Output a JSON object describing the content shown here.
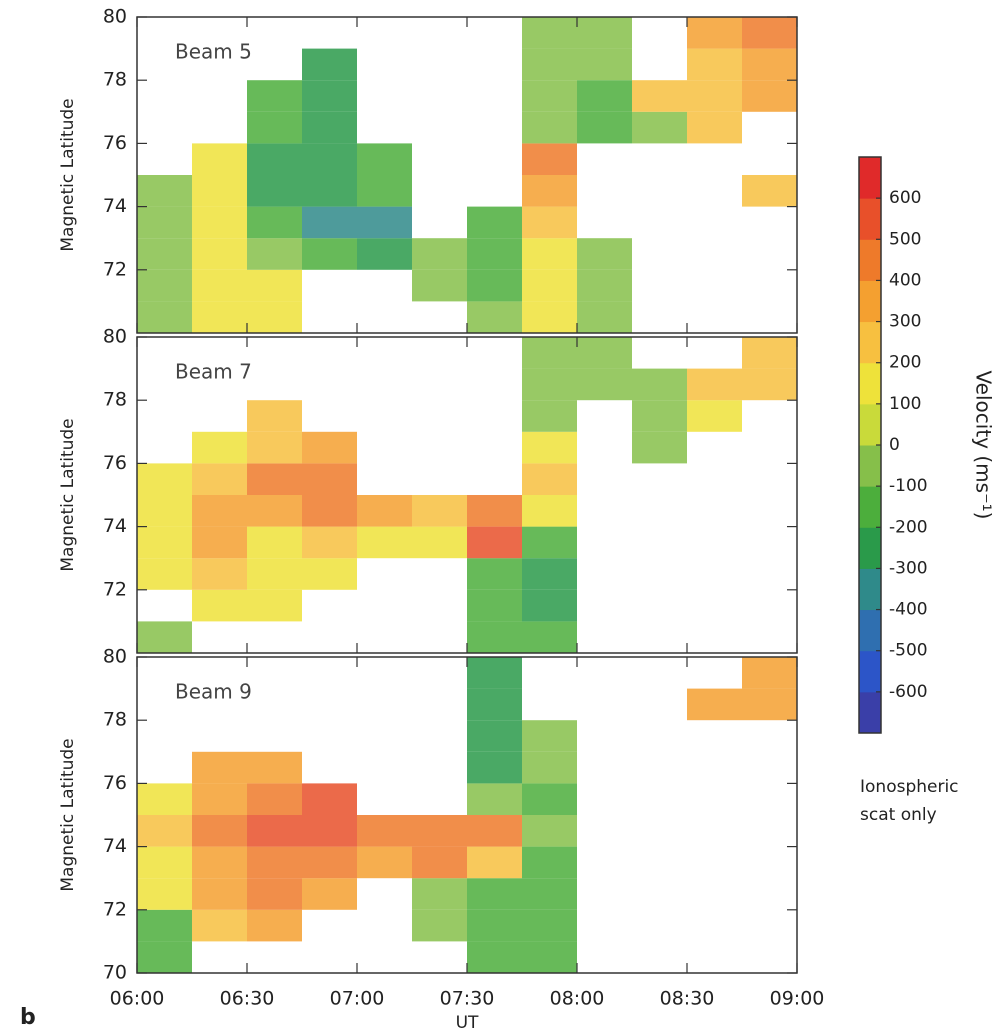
{
  "panel_label": "b",
  "note": [
    "Ionospheric",
    "scat only"
  ],
  "colorbar": {
    "label": "Velocity (ms⁻¹)",
    "ylim": [
      -700,
      700
    ],
    "yticks": [
      -600,
      -500,
      -400,
      -300,
      -200,
      -100,
      0,
      100,
      200,
      300,
      400,
      500,
      600
    ],
    "colors": [
      "#3a3fa8",
      "#2c55c8",
      "#2f6fb0",
      "#2f8a8a",
      "#2a9a4a",
      "#4cae3c",
      "#86bf4a",
      "#c9da3a",
      "#eee23a",
      "#f7c040",
      "#f4a030",
      "#ee7a2a",
      "#e8502a",
      "#e02a2a"
    ]
  },
  "chart_data": [
    {
      "type": "heatmap",
      "title": "Beam 5",
      "ylabel": "Magnetic Latitude",
      "xlim": [
        360,
        540
      ],
      "ylim": [
        70,
        80
      ],
      "yticks": [
        72,
        74,
        76,
        78,
        80
      ],
      "x": [
        367.5,
        382.5,
        397.5,
        412.5,
        427.5,
        442.5,
        457.5,
        472.5,
        487.5,
        502.5,
        517.5,
        532.5
      ],
      "y": [
        70.5,
        71.5,
        72.5,
        73.5,
        74.5,
        75.5,
        76.5,
        77.5,
        78.5,
        79.5
      ],
      "values": [
        [
          -100,
          100,
          100,
          null,
          null,
          null,
          -100,
          100,
          -100,
          null,
          null,
          null
        ],
        [
          -100,
          100,
          100,
          null,
          null,
          -50,
          -200,
          100,
          -100,
          null,
          null,
          null
        ],
        [
          -100,
          100,
          -100,
          -200,
          -300,
          -100,
          -150,
          100,
          -100,
          null,
          null,
          null
        ],
        [
          -50,
          100,
          -200,
          -350,
          -350,
          null,
          -150,
          200,
          null,
          null,
          null,
          null
        ],
        [
          -50,
          150,
          -250,
          -300,
          -200,
          null,
          null,
          350,
          null,
          null,
          null,
          200
        ],
        [
          null,
          150,
          -250,
          -250,
          -200,
          null,
          null,
          400,
          null,
          null,
          null,
          null
        ],
        [
          null,
          null,
          -200,
          -250,
          null,
          null,
          null,
          -100,
          -150,
          -100,
          200,
          null
        ],
        [
          null,
          null,
          -200,
          -250,
          null,
          null,
          null,
          -100,
          -150,
          200,
          250,
          300
        ],
        [
          null,
          null,
          null,
          -300,
          null,
          null,
          null,
          -100,
          -100,
          null,
          250,
          350
        ],
        [
          null,
          null,
          null,
          null,
          null,
          null,
          null,
          -100,
          -50,
          null,
          300,
          450
        ]
      ]
    },
    {
      "type": "heatmap",
      "title": "Beam 7",
      "ylabel": "Magnetic Latitude",
      "xlim": [
        360,
        540
      ],
      "ylim": [
        70,
        80
      ],
      "yticks": [
        72,
        74,
        76,
        78,
        80
      ],
      "x": [
        367.5,
        382.5,
        397.5,
        412.5,
        427.5,
        442.5,
        457.5,
        472.5,
        487.5,
        502.5,
        517.5,
        532.5
      ],
      "y": [
        70.5,
        71.5,
        72.5,
        73.5,
        74.5,
        75.5,
        76.5,
        77.5,
        78.5,
        79.5
      ],
      "values": [
        [
          -50,
          null,
          null,
          null,
          null,
          null,
          -200,
          -200,
          null,
          null,
          null,
          null
        ],
        [
          null,
          150,
          100,
          null,
          null,
          null,
          -200,
          -250,
          null,
          null,
          null,
          null
        ],
        [
          150,
          250,
          150,
          100,
          null,
          null,
          -200,
          -250,
          null,
          null,
          null,
          null
        ],
        [
          150,
          350,
          150,
          200,
          100,
          100,
          500,
          -200,
          null,
          null,
          null,
          null
        ],
        [
          100,
          300,
          350,
          400,
          300,
          200,
          450,
          100,
          null,
          null,
          null,
          null
        ],
        [
          100,
          250,
          400,
          450,
          null,
          null,
          null,
          200,
          null,
          null,
          null,
          null
        ],
        [
          null,
          150,
          250,
          300,
          null,
          null,
          null,
          100,
          null,
          -50,
          null,
          null
        ],
        [
          null,
          null,
          200,
          null,
          null,
          null,
          null,
          -100,
          null,
          -100,
          100,
          null
        ],
        [
          null,
          null,
          null,
          null,
          null,
          null,
          null,
          -100,
          -100,
          -100,
          200,
          250
        ],
        [
          null,
          null,
          null,
          null,
          null,
          null,
          null,
          -100,
          -100,
          null,
          null,
          250
        ]
      ]
    },
    {
      "type": "heatmap",
      "title": "Beam 9",
      "ylabel": "Magnetic Latitude",
      "xlabel": "UT",
      "xlim": [
        360,
        540
      ],
      "ylim": [
        70,
        80
      ],
      "yticks": [
        70,
        72,
        74,
        76,
        78,
        80
      ],
      "xticks": [
        {
          "value": 360,
          "label": "06:00"
        },
        {
          "value": 390,
          "label": "06:30"
        },
        {
          "value": 420,
          "label": "07:00"
        },
        {
          "value": 450,
          "label": "07:30"
        },
        {
          "value": 480,
          "label": "08:00"
        },
        {
          "value": 510,
          "label": "08:30"
        },
        {
          "value": 540,
          "label": "09:00"
        }
      ],
      "x": [
        367.5,
        382.5,
        397.5,
        412.5,
        427.5,
        442.5,
        457.5,
        472.5,
        487.5,
        502.5,
        517.5,
        532.5
      ],
      "y": [
        70.5,
        71.5,
        72.5,
        73.5,
        74.5,
        75.5,
        76.5,
        77.5,
        78.5,
        79.5
      ],
      "values": [
        [
          -150,
          null,
          null,
          null,
          null,
          null,
          -200,
          -150,
          null,
          null,
          null,
          null
        ],
        [
          -150,
          200,
          350,
          null,
          null,
          -100,
          -200,
          -200,
          null,
          null,
          null,
          null
        ],
        [
          100,
          300,
          400,
          300,
          null,
          -100,
          -200,
          -200,
          null,
          null,
          null,
          null
        ],
        [
          150,
          350,
          450,
          400,
          350,
          400,
          200,
          -150,
          null,
          null,
          null,
          null
        ],
        [
          200,
          400,
          500,
          500,
          450,
          450,
          400,
          -100,
          null,
          null,
          null,
          null
        ],
        [
          150,
          350,
          450,
          500,
          null,
          null,
          -100,
          -150,
          null,
          null,
          null,
          null
        ],
        [
          null,
          300,
          350,
          null,
          null,
          null,
          -300,
          -100,
          null,
          null,
          null,
          null
        ],
        [
          null,
          null,
          null,
          null,
          null,
          null,
          -300,
          -100,
          null,
          null,
          null,
          null
        ],
        [
          null,
          null,
          null,
          null,
          null,
          null,
          -250,
          null,
          null,
          null,
          300,
          300
        ],
        [
          null,
          null,
          null,
          null,
          null,
          null,
          -300,
          null,
          null,
          null,
          null,
          350
        ]
      ]
    }
  ]
}
